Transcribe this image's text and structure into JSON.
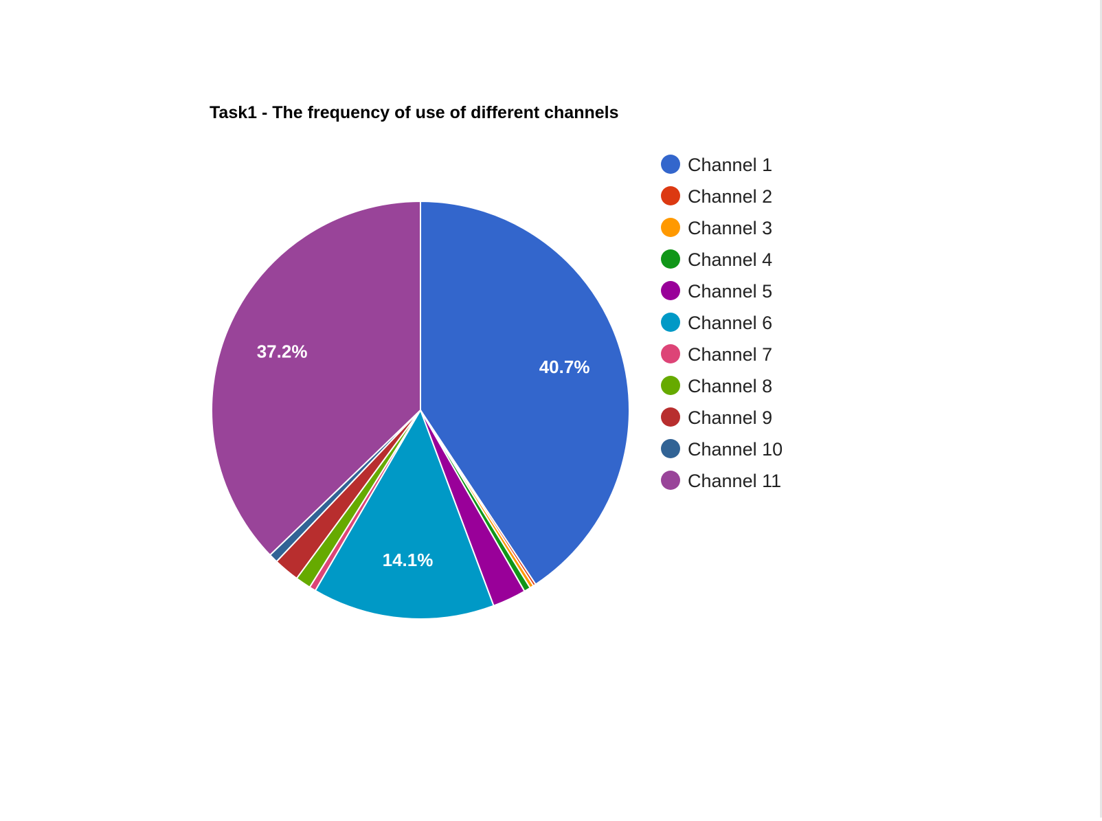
{
  "chart_data": {
    "type": "pie",
    "title": "Task1 - The frequency of use of different channels",
    "legend_position": "right",
    "slices": [
      {
        "name": "Channel 1",
        "value": 40.7,
        "color": "#3366cc",
        "label": "40.7%"
      },
      {
        "name": "Channel 2",
        "value": 0.2,
        "color": "#dc3912",
        "label": ""
      },
      {
        "name": "Channel 3",
        "value": 0.3,
        "color": "#ff9900",
        "label": ""
      },
      {
        "name": "Channel 4",
        "value": 0.5,
        "color": "#109618",
        "label": ""
      },
      {
        "name": "Channel 5",
        "value": 2.6,
        "color": "#990099",
        "label": ""
      },
      {
        "name": "Channel 6",
        "value": 14.1,
        "color": "#0099c6",
        "label": "14.1%"
      },
      {
        "name": "Channel 7",
        "value": 0.5,
        "color": "#dd4477",
        "label": ""
      },
      {
        "name": "Channel 8",
        "value": 1.2,
        "color": "#66aa00",
        "label": ""
      },
      {
        "name": "Channel 9",
        "value": 2.0,
        "color": "#b82e2e",
        "label": ""
      },
      {
        "name": "Channel 10",
        "value": 0.7,
        "color": "#316395",
        "label": ""
      },
      {
        "name": "Channel 11",
        "value": 37.2,
        "color": "#994499",
        "label": "37.2%"
      }
    ]
  }
}
